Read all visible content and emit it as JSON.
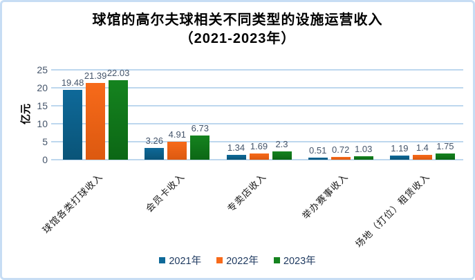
{
  "chart_data": {
    "type": "bar",
    "title": "球馆的高尔夫球相关不同类型的设施运营收入（2021-2023年）",
    "title_lines": [
      "球馆的高尔夫球相关不同类型的设施运营收入",
      "（2021-2023年）"
    ],
    "ylabel": "亿元",
    "ylim": [
      0,
      25
    ],
    "yticks": [
      0,
      5,
      10,
      15,
      20,
      25
    ],
    "grid": true,
    "legend_position": "bottom",
    "categories": [
      "球馆各类打球收入",
      "会员卡收入",
      "专卖店收入",
      "举办赛事收入",
      "场地（打位）租赁收入"
    ],
    "series": [
      {
        "name": "2021年",
        "color": "#0e6999",
        "color_dark": "#0a5478",
        "values": [
          19.48,
          3.26,
          1.34,
          0.51,
          1.19
        ]
      },
      {
        "name": "2022年",
        "color": "#f76a1a",
        "color_dark": "#dc5910",
        "values": [
          21.39,
          4.91,
          1.69,
          0.72,
          1.4
        ]
      },
      {
        "name": "2023年",
        "color": "#15831f",
        "color_dark": "#0c6715",
        "values": [
          22.03,
          6.73,
          2.3,
          1.03,
          1.75
        ]
      }
    ],
    "colors": {
      "grid": "#bdd7ee",
      "axis_text": "#44546a",
      "data_label": "#44546a",
      "legend_text": "#1f3a60",
      "category_text": "#1a1a1a",
      "border": "#c7ddf4",
      "background": "#ffffff"
    }
  }
}
